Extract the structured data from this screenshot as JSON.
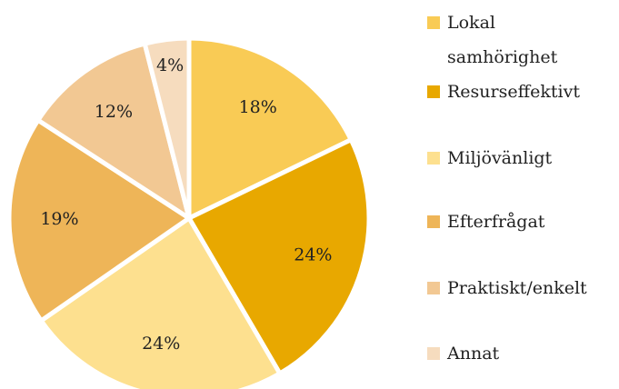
{
  "chart_data": {
    "type": "pie",
    "categories": [
      "Lokal samhörighet",
      "Resurseffektivt",
      "Miljövänligt",
      "Efterfrågat",
      "Praktiskt/enkelt",
      "Annat"
    ],
    "values": [
      18,
      24,
      24,
      19,
      12,
      4
    ],
    "value_labels": [
      "18%",
      "24%",
      "24%",
      "19%",
      "12%",
      "4%"
    ],
    "colors": [
      "#f9cb55",
      "#e8a800",
      "#fde08f",
      "#eeb558",
      "#f2c893",
      "#f6dcbe"
    ]
  }
}
